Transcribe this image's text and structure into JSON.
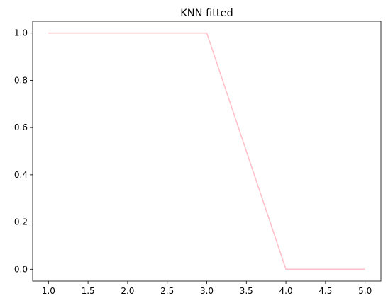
{
  "chart_data": {
    "type": "line",
    "title": "KNN fitted",
    "xlabel": "",
    "ylabel": "",
    "x": [
      1.0,
      2.0,
      3.0,
      4.0,
      5.0
    ],
    "series": [
      {
        "values": [
          1.0,
          1.0,
          1.0,
          0.0,
          0.0
        ],
        "color": "#ffc0cb"
      }
    ],
    "xlim": [
      0.8,
      5.2
    ],
    "ylim": [
      -0.05,
      1.05
    ],
    "xticks": [
      1.0,
      1.5,
      2.0,
      2.5,
      3.0,
      3.5,
      4.0,
      4.5,
      5.0
    ],
    "xtick_labels": [
      "1.0",
      "1.5",
      "2.0",
      "2.5",
      "3.0",
      "3.5",
      "4.0",
      "4.5",
      "5.0"
    ],
    "yticks": [
      0.0,
      0.2,
      0.4,
      0.6,
      0.8,
      1.0
    ],
    "ytick_labels": [
      "0.0",
      "0.2",
      "0.4",
      "0.6",
      "0.8",
      "1.0"
    ],
    "grid": false,
    "legend": false
  }
}
